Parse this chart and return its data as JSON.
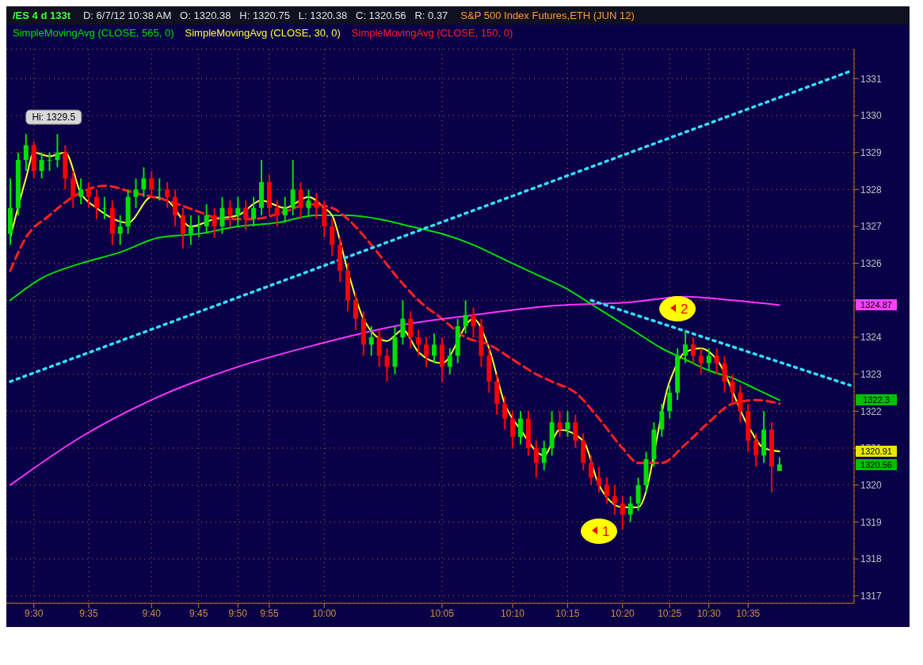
{
  "chart_data": {
    "type": "candlestick",
    "title": "/ES 4 d 133t",
    "subtitle": "D: 6/7/12 10:38 AM   O: 1320.38   H: 1320.75   L: 1320.38   C: 1320.56   R: 0.37",
    "categories": [
      null,
      null,
      null,
      "9:30",
      null,
      null,
      null,
      null,
      null,
      null,
      "9:35",
      null,
      null,
      null,
      null,
      null,
      null,
      null,
      "9:40",
      null,
      null,
      null,
      null,
      null,
      "9:45",
      null,
      null,
      null,
      null,
      "9:50",
      null,
      null,
      null,
      "9:55",
      null,
      null,
      null,
      null,
      null,
      null,
      "10:00",
      null,
      null,
      null,
      null,
      null,
      null,
      null,
      null,
      null,
      null,
      null,
      null,
      null,
      null,
      "10:05",
      null,
      null,
      null,
      null,
      null,
      null,
      null,
      null,
      "10:10",
      null,
      null,
      null,
      null,
      null,
      null,
      "10:15",
      null,
      null,
      null,
      null,
      null,
      null,
      "10:20",
      null,
      null,
      null,
      null,
      null,
      "10:25",
      null,
      null,
      null,
      null,
      "10:30",
      null,
      null,
      null,
      null,
      "10:35",
      null,
      null,
      null,
      null,
      null,
      null,
      null,
      null,
      null,
      null,
      null,
      null,
      null
    ],
    "ohlc": [
      [
        1326.8,
        1328.3,
        1326.5,
        1327.5
      ],
      [
        1327.5,
        1329,
        1327.3,
        1328.8
      ],
      [
        1328.8,
        1329.5,
        1328.5,
        1329.2
      ],
      [
        1329.2,
        1329.3,
        1328.3,
        1328.5
      ],
      [
        1328.5,
        1329,
        1328.3,
        1328.8
      ],
      [
        1328.8,
        1329,
        1328.5,
        1328.8
      ],
      [
        1328.8,
        1329.5,
        1328.6,
        1329
      ],
      [
        1329,
        1329.2,
        1328,
        1328.3
      ],
      [
        1328.3,
        1328.5,
        1327.5,
        1327.8
      ],
      [
        1327.8,
        1328.3,
        1327.6,
        1328
      ],
      [
        1328,
        1328.2,
        1327.5,
        1327.8
      ],
      [
        1327.8,
        1328,
        1327.2,
        1327.5
      ],
      [
        1327.5,
        1327.8,
        1327.2,
        1327.5
      ],
      [
        1327.5,
        1327.7,
        1326.5,
        1326.8
      ],
      [
        1326.8,
        1327.3,
        1326.5,
        1327
      ],
      [
        1327,
        1328,
        1326.8,
        1327.8
      ],
      [
        1327.8,
        1328.3,
        1327.5,
        1328
      ],
      [
        1328,
        1328.6,
        1327.8,
        1328.3
      ],
      [
        1328.3,
        1328.5,
        1327.8,
        1328
      ],
      [
        1328,
        1328.3,
        1327.7,
        1328
      ],
      [
        1328,
        1328.2,
        1327.5,
        1327.8
      ],
      [
        1327.8,
        1328,
        1327,
        1327.3
      ],
      [
        1327.3,
        1327.5,
        1326.4,
        1326.8
      ],
      [
        1326.8,
        1327.3,
        1326.5,
        1327
      ],
      [
        1327,
        1327.3,
        1326.7,
        1327
      ],
      [
        1327,
        1327.6,
        1326.8,
        1327.3
      ],
      [
        1327.3,
        1327.5,
        1326.7,
        1327
      ],
      [
        1327,
        1327.8,
        1326.8,
        1327.5
      ],
      [
        1327.5,
        1327.7,
        1327,
        1327.3
      ],
      [
        1327.3,
        1327.8,
        1327,
        1327.5
      ],
      [
        1327.5,
        1327.7,
        1326.9,
        1327.2
      ],
      [
        1327.2,
        1327.8,
        1327,
        1327.5
      ],
      [
        1327.5,
        1328.8,
        1327.3,
        1328.2
      ],
      [
        1328.2,
        1328.4,
        1327.3,
        1327.5
      ],
      [
        1327.5,
        1327.7,
        1327,
        1327.3
      ],
      [
        1327.3,
        1327.8,
        1327.1,
        1327.5
      ],
      [
        1327.5,
        1328.8,
        1327.3,
        1328
      ],
      [
        1328,
        1328.2,
        1327.2,
        1327.5
      ],
      [
        1327.5,
        1328,
        1327.3,
        1327.7
      ],
      [
        1327.7,
        1327.9,
        1327.2,
        1327.5
      ],
      [
        1327.5,
        1327.7,
        1326.7,
        1327
      ],
      [
        1327,
        1327.2,
        1326.2,
        1326.5
      ],
      [
        1326.5,
        1326.7,
        1325.5,
        1325.8
      ],
      [
        1325.8,
        1326,
        1324.7,
        1325
      ],
      [
        1325,
        1325.2,
        1324.2,
        1324.5
      ],
      [
        1324.5,
        1324.7,
        1323.5,
        1323.8
      ],
      [
        1323.8,
        1324.3,
        1323.5,
        1324
      ],
      [
        1324,
        1324.2,
        1323.2,
        1323.5
      ],
      [
        1323.5,
        1323.7,
        1322.8,
        1323.2
      ],
      [
        1323.2,
        1324.3,
        1323,
        1324
      ],
      [
        1324,
        1325,
        1323.8,
        1324.5
      ],
      [
        1324.5,
        1324.7,
        1323.7,
        1324
      ],
      [
        1324,
        1324.2,
        1323.5,
        1323.8
      ],
      [
        1323.8,
        1324,
        1323.2,
        1323.5
      ],
      [
        1323.5,
        1324.1,
        1323.3,
        1323.8
      ],
      [
        1323.8,
        1324,
        1322.8,
        1323.2
      ],
      [
        1323.2,
        1323.7,
        1323,
        1323.5
      ],
      [
        1323.5,
        1324.5,
        1323.3,
        1324.3
      ],
      [
        1324.3,
        1325,
        1324.1,
        1324.6
      ],
      [
        1324.6,
        1324.8,
        1324,
        1324.3
      ],
      [
        1324.3,
        1324.5,
        1323.2,
        1323.5
      ],
      [
        1323.5,
        1323.7,
        1322.5,
        1322.8
      ],
      [
        1322.8,
        1323,
        1321.9,
        1322.2
      ],
      [
        1322.2,
        1322.4,
        1321.5,
        1321.8
      ],
      [
        1321.8,
        1322,
        1321,
        1321.3
      ],
      [
        1321.3,
        1322,
        1321.1,
        1321.8
      ],
      [
        1321.8,
        1322,
        1320.8,
        1321
      ],
      [
        1321,
        1321.2,
        1320.2,
        1320.6
      ],
      [
        1320.6,
        1321.2,
        1320.4,
        1321
      ],
      [
        1321,
        1322,
        1320.8,
        1321.7
      ],
      [
        1321.7,
        1322,
        1321.3,
        1321.5
      ],
      [
        1321.5,
        1322,
        1321.3,
        1321.7
      ],
      [
        1321.7,
        1321.9,
        1321,
        1321.2
      ],
      [
        1321.2,
        1321.4,
        1320.4,
        1320.6
      ],
      [
        1320.6,
        1320.8,
        1320,
        1320.2
      ],
      [
        1320.2,
        1320.5,
        1319.8,
        1320
      ],
      [
        1320,
        1320.2,
        1319.5,
        1319.7
      ],
      [
        1319.7,
        1320,
        1319.2,
        1319.5
      ],
      [
        1319.5,
        1319.7,
        1318.8,
        1319.2
      ],
      [
        1319.2,
        1319.7,
        1319,
        1319.5
      ],
      [
        1319.5,
        1320.2,
        1319.3,
        1320
      ],
      [
        1320,
        1320.9,
        1319.8,
        1320.7
      ],
      [
        1320.7,
        1321.7,
        1320.5,
        1321.5
      ],
      [
        1321.5,
        1322.2,
        1321.3,
        1322
      ],
      [
        1322,
        1322.7,
        1321.8,
        1322.5
      ],
      [
        1322.5,
        1323.7,
        1322.3,
        1323.5
      ],
      [
        1323.5,
        1324.2,
        1323.3,
        1323.8
      ],
      [
        1323.8,
        1324,
        1323.3,
        1323.5
      ],
      [
        1323.5,
        1323.7,
        1323,
        1323.3
      ],
      [
        1323.3,
        1323.7,
        1323.1,
        1323.5
      ],
      [
        1323.5,
        1323.7,
        1323,
        1323.3
      ],
      [
        1323.3,
        1323.5,
        1322.5,
        1322.8
      ],
      [
        1322.8,
        1323,
        1322.2,
        1322.5
      ],
      [
        1322.5,
        1322.7,
        1321.7,
        1322
      ],
      [
        1322,
        1322.2,
        1320.9,
        1321.2
      ],
      [
        1321.2,
        1321.4,
        1320.5,
        1320.8
      ],
      [
        1320.8,
        1322,
        1320.6,
        1321.5
      ],
      [
        1321.5,
        1321.7,
        1319.8,
        1320.5
      ],
      [
        1320.38,
        1320.75,
        1320.38,
        1320.56
      ],
      null,
      null,
      null,
      null,
      null,
      null,
      null,
      null,
      null
    ],
    "series": [
      {
        "type": "line",
        "name": "SimpleMovingAvg (CLOSE, 565, 0)",
        "color": "#00e000",
        "values": [
          1325,
          null,
          null,
          null,
          1325.6,
          null,
          null,
          null,
          null,
          1326,
          null,
          null,
          null,
          null,
          1326.3,
          null,
          null,
          null,
          null,
          1326.7,
          null,
          null,
          null,
          null,
          1326.8,
          null,
          null,
          null,
          null,
          1327,
          null,
          null,
          null,
          null,
          1327.1,
          null,
          null,
          null,
          null,
          1327.3,
          null,
          null,
          null,
          1327.3,
          null,
          null,
          null,
          1327.2,
          null,
          null,
          null,
          1327.0,
          null,
          null,
          null,
          1326.8,
          null,
          null,
          null,
          1326.5,
          null,
          null,
          null,
          1326.1,
          null,
          null,
          null,
          1325.7,
          null,
          null,
          null,
          1325.3,
          null,
          null,
          1324.9,
          null,
          null,
          1324.5,
          null,
          null,
          1324.1,
          null,
          null,
          1323.7,
          null,
          null,
          1323.4,
          null,
          null,
          1323.1,
          null,
          null,
          1322.9,
          null,
          null,
          1322.6,
          null,
          null,
          1322.3,
          null,
          null,
          null,
          null,
          null,
          null,
          null,
          null,
          null
        ]
      },
      {
        "type": "line",
        "name": "SimpleMovingAvg (CLOSE, 30, 0)",
        "color": "#ffff33",
        "values": [
          1326.7,
          null,
          1328.3,
          1329,
          null,
          1328.9,
          null,
          1329,
          null,
          1327.9,
          null,
          1327.5,
          null,
          null,
          null,
          1327.1,
          null,
          null,
          1327.8,
          null,
          1327.7,
          null,
          null,
          1327.0,
          null,
          null,
          1327.2,
          null,
          null,
          1327.3,
          null,
          null,
          1327.7,
          null,
          null,
          1327.5,
          null,
          null,
          1327.8,
          null,
          1327.5,
          1327.3,
          null,
          1325.8,
          null,
          1324.5,
          null,
          null,
          1323.9,
          null,
          1324.2,
          null,
          1323.6,
          null,
          null,
          1323.3,
          null,
          null,
          null,
          1324.5,
          null,
          1323.7,
          null,
          1322.2,
          null,
          1321.5,
          null,
          null,
          1320.8,
          null,
          1321.5,
          null,
          null,
          1321.2,
          null,
          1320.0,
          null,
          null,
          1319.4,
          null,
          1319.4,
          null,
          null,
          null,
          1322.8,
          null,
          1323.6,
          null,
          1323.7,
          null,
          1323.4,
          null,
          null,
          null,
          1321.6,
          null,
          1321,
          null,
          1320.91,
          null,
          null,
          null,
          null,
          null,
          null,
          null,
          null,
          null
        ]
      },
      {
        "type": "line",
        "name": "SimpleMovingAvg (CLOSE, 150, 0)",
        "color": "#ff2020",
        "line_style": "dashed",
        "values": [
          1325.8,
          null,
          1326.7,
          null,
          null,
          1327.3,
          null,
          null,
          1327.8,
          null,
          null,
          null,
          1328.1,
          null,
          null,
          null,
          1327.9,
          null,
          null,
          null,
          1327.7,
          null,
          null,
          null,
          1327.4,
          null,
          null,
          1327.2,
          null,
          null,
          null,
          1327.2,
          null,
          null,
          null,
          1327.4,
          null,
          null,
          1327.6,
          null,
          null,
          1327.5,
          null,
          1327.2,
          null,
          null,
          1326.5,
          null,
          null,
          1325.7,
          null,
          null,
          1325.0,
          null,
          null,
          1324.5,
          null,
          null,
          1324.0,
          null,
          null,
          1323.8,
          null,
          null,
          1323.4,
          null,
          null,
          1323.0,
          null,
          1322.8,
          null,
          null,
          1322.5,
          null,
          null,
          1321.8,
          null,
          null,
          1321.0,
          null,
          1320.6,
          null,
          null,
          1320.6,
          null,
          null,
          1321.1,
          null,
          null,
          1321.7,
          null,
          null,
          1322.2,
          null,
          null,
          1322.3,
          null,
          null,
          1322.2,
          null,
          null,
          null,
          null,
          null,
          null,
          null,
          null,
          null
        ]
      },
      {
        "type": "line",
        "color": "#ff33ff",
        "values": [
          1320,
          null,
          null,
          null,
          null,
          null,
          null,
          null,
          null,
          1321.3,
          null,
          null,
          null,
          null,
          null,
          null,
          null,
          null,
          null,
          1322.4,
          null,
          null,
          null,
          null,
          null,
          null,
          null,
          null,
          null,
          1323.2,
          null,
          null,
          null,
          null,
          null,
          null,
          null,
          null,
          null,
          1323.8,
          null,
          null,
          null,
          null,
          null,
          null,
          null,
          null,
          null,
          1324.3,
          null,
          null,
          null,
          null,
          null,
          null,
          null,
          null,
          null,
          1324.6,
          null,
          null,
          null,
          null,
          null,
          null,
          null,
          null,
          null,
          1324.85,
          null,
          null,
          null,
          null,
          null,
          null,
          null,
          null,
          null,
          1324.95,
          null,
          null,
          null,
          null,
          null,
          null,
          1325.1,
          null,
          null,
          null,
          null,
          null,
          1325,
          null,
          null,
          null,
          null,
          null,
          1324.87,
          null,
          null,
          null,
          null,
          null,
          null,
          null,
          null,
          null
        ]
      },
      {
        "type": "line",
        "color": "#33e0ff",
        "line_style": "dotted",
        "values": [
          1322.8,
          null,
          null,
          null,
          null,
          null,
          null,
          null,
          null,
          null,
          null,
          null,
          null,
          null,
          null,
          null,
          null,
          null,
          null,
          null,
          null,
          null,
          null,
          null,
          null,
          null,
          null,
          null,
          null,
          null,
          null,
          null,
          null,
          null,
          null,
          null,
          null,
          null,
          null,
          null,
          null,
          null,
          null,
          null,
          null,
          null,
          null,
          null,
          null,
          null,
          null,
          null,
          null,
          null,
          null,
          null,
          null,
          null,
          null,
          null,
          null,
          null,
          null,
          null,
          null,
          null,
          null,
          null,
          null,
          null,
          null,
          null,
          null,
          null,
          null,
          null,
          null,
          null,
          null,
          null,
          null,
          null,
          null,
          null,
          null,
          null,
          null,
          null,
          null,
          null,
          null,
          null,
          null,
          null,
          null,
          null,
          null,
          null,
          null,
          null,
          null,
          null,
          null,
          null,
          null,
          null,
          null,
          1331.2
        ]
      },
      {
        "type": "line",
        "color": "#33e0ff",
        "line_style": "dotted",
        "values": [
          null,
          null,
          null,
          null,
          null,
          null,
          null,
          null,
          null,
          null,
          null,
          null,
          null,
          null,
          null,
          null,
          null,
          null,
          null,
          null,
          null,
          null,
          null,
          null,
          null,
          null,
          null,
          null,
          null,
          null,
          null,
          null,
          null,
          null,
          null,
          null,
          null,
          null,
          null,
          null,
          null,
          null,
          null,
          null,
          null,
          null,
          null,
          null,
          null,
          null,
          null,
          null,
          null,
          null,
          null,
          null,
          null,
          null,
          null,
          null,
          null,
          null,
          null,
          null,
          null,
          null,
          null,
          null,
          null,
          null,
          null,
          null,
          null,
          null,
          1325.0,
          null,
          null,
          null,
          null,
          null,
          null,
          null,
          null,
          null,
          null,
          null,
          null,
          null,
          null,
          null,
          null,
          null,
          null,
          null,
          null,
          null,
          null,
          null,
          null,
          null,
          null,
          null,
          null,
          null,
          null,
          null,
          null,
          1322.7
        ]
      }
    ],
    "ylim": [
      1316.8,
      1331.8
    ],
    "yticks": [
      1317,
      1318,
      1319,
      1320,
      1321,
      1322,
      1323,
      1324,
      {
        "value": 1325,
        "label": null
      },
      1326,
      1327,
      1328,
      1329,
      1330,
      1331
    ],
    "grid": true,
    "legend": "top left",
    "annotations": [
      "S&P 500 Index Futures,ETH (JUN 12)",
      "Hi: 1329.5",
      "1",
      "2",
      "1324.87",
      "1322.3",
      "1320.91",
      "1320.56"
    ]
  }
}
